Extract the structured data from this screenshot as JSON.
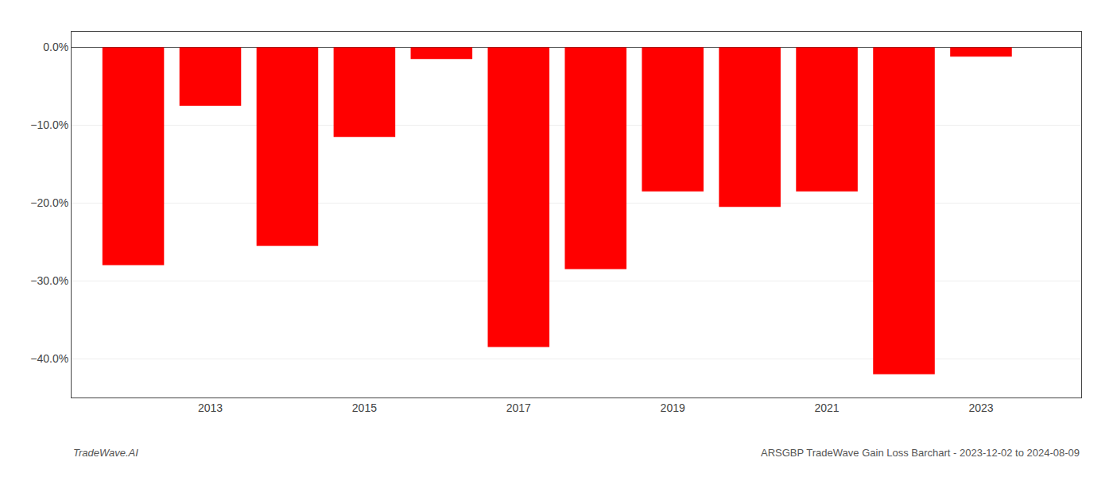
{
  "chart_data": {
    "type": "bar",
    "x": [
      2012,
      2013,
      2014,
      2015,
      2016,
      2017,
      2018,
      2019,
      2020,
      2021,
      2022,
      2023
    ],
    "values": [
      -28.0,
      -7.5,
      -25.5,
      -11.5,
      -1.5,
      -38.5,
      -28.5,
      -18.5,
      -20.5,
      -18.5,
      -42.0,
      -1.2
    ],
    "color": "#ff0000",
    "xlim": [
      2011.2,
      2024.3
    ],
    "xticks": [
      2013,
      2015,
      2017,
      2019,
      2021,
      2023
    ],
    "ylim": [
      -45,
      2
    ],
    "yticks": [
      {
        "value": 0.0,
        "label": "0.0%"
      },
      {
        "value": -10.0,
        "label": "−10.0%"
      },
      {
        "value": -20.0,
        "label": "−20.0%"
      },
      {
        "value": -30.0,
        "label": "−30.0%"
      },
      {
        "value": -40.0,
        "label": "−40.0%"
      }
    ],
    "grid": "y",
    "annotations": [
      "TradeWave.AI",
      "ARSGBP TradeWave Gain Loss Barchart - 2023-12-02 to 2024-08-09"
    ]
  }
}
